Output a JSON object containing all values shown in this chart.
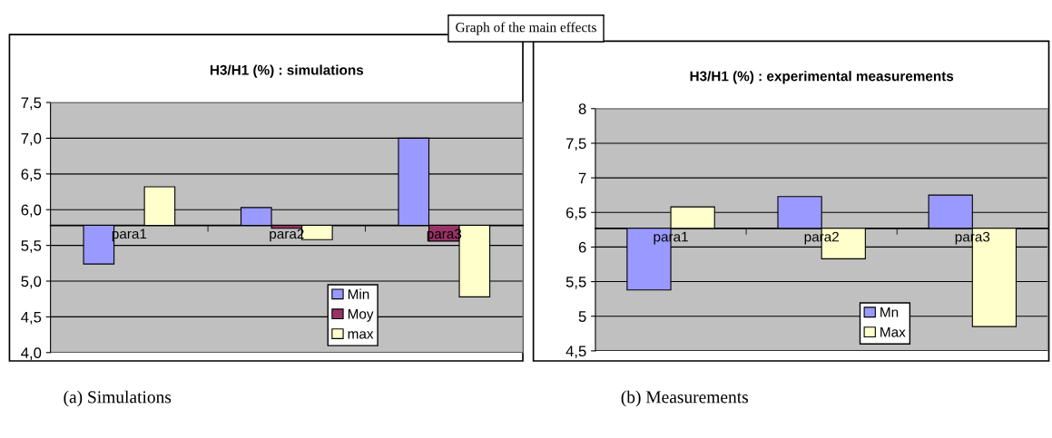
{
  "chart_data": [
    {
      "type": "bar",
      "title": "H3/H1 (%) : simulations",
      "categories": [
        "para1",
        "para2",
        "para3"
      ],
      "series": [
        {
          "name": "Min",
          "color": "#9999ff",
          "base": [
            5.78,
            5.78,
            5.78
          ],
          "values": [
            -0.54,
            0.25,
            1.22
          ]
        },
        {
          "name": "Moy",
          "color": "#993366",
          "base": [
            null,
            5.78,
            5.78
          ],
          "values": [
            null,
            -0.04,
            -0.22
          ]
        },
        {
          "name": "max",
          "color": "#ffffcc",
          "base": [
            5.78,
            5.78,
            5.78
          ],
          "values": [
            0.54,
            -0.2,
            -1.0
          ]
        }
      ],
      "ylim": [
        4.0,
        7.5
      ],
      "yticks": [
        {
          "value": 4.0,
          "label": "4,0"
        },
        {
          "value": 4.5,
          "label": "4,5"
        },
        {
          "value": 5.0,
          "label": "5,0"
        },
        {
          "value": 5.5,
          "label": "5,5"
        },
        {
          "value": 6.0,
          "label": "6,0"
        },
        {
          "value": 6.5,
          "label": "6,5"
        },
        {
          "value": 7.0,
          "label": "7,0"
        },
        {
          "value": 7.5,
          "label": "7,5"
        }
      ],
      "grid": "y",
      "legend": "bottom",
      "annotations": [
        "Graph of the main effects",
        "(a) Simulations"
      ]
    },
    {
      "type": "bar",
      "title": "H3/H1 (%) : experimental measurements",
      "categories": [
        "para1",
        "para2",
        "para3"
      ],
      "series": [
        {
          "name": "Mn",
          "color": "#9999ff",
          "base": [
            6.27,
            6.27,
            6.27
          ],
          "values": [
            -0.89,
            0.46,
            0.48
          ]
        },
        {
          "name": "Max",
          "color": "#ffffcc",
          "base": [
            6.27,
            6.27,
            6.27
          ],
          "values": [
            0.31,
            -0.44,
            -1.42
          ]
        }
      ],
      "ylim": [
        4.5,
        8
      ],
      "yticks": [
        {
          "value": 4.5,
          "label": "4,5"
        },
        5,
        {
          "value": 5.5,
          "label": "5,5"
        },
        6,
        {
          "value": 6.5,
          "label": "6,5"
        },
        7,
        {
          "value": 7.5,
          "label": "7,5"
        },
        8
      ],
      "grid": "y",
      "legend": "bottom",
      "annotations": [
        "(b) Measurements"
      ]
    }
  ]
}
